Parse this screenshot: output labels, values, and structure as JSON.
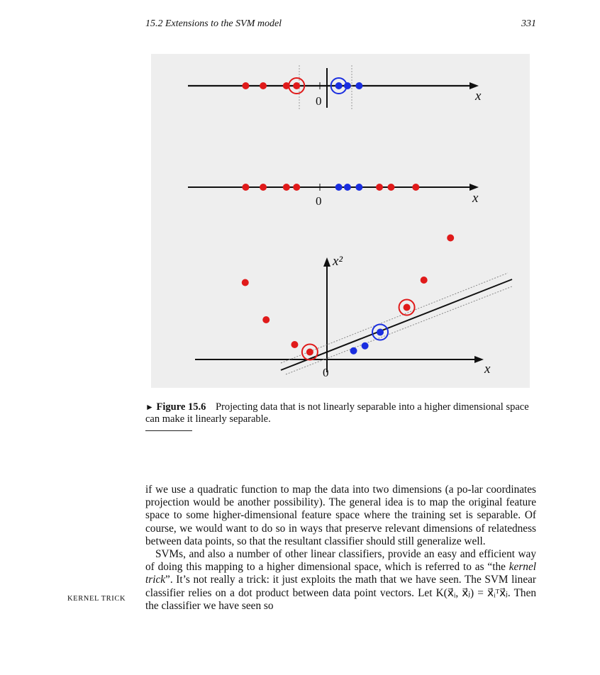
{
  "running_head": {
    "section": "15.2   Extensions to the SVM model",
    "page_number": "331"
  },
  "figure": {
    "panel1": {
      "axis_label": "x",
      "zero_label": "0",
      "red_points": [
        -5.1,
        -3.9,
        -2.3,
        -1.6
      ],
      "blue_points": [
        1.3,
        1.9,
        2.7
      ],
      "support_vectors": [
        {
          "x": -1.6,
          "class": "red"
        },
        {
          "x": 1.3,
          "class": "blue"
        }
      ],
      "colors": {
        "red": "#e01a1a",
        "blue": "#1a2ee0"
      }
    },
    "panel2": {
      "axis_label": "x",
      "zero_label": "0",
      "red_points": [
        -5.1,
        -3.9,
        -2.3,
        -1.6,
        4.1,
        4.9,
        6.6
      ],
      "blue_points": [
        1.3,
        1.9,
        2.7
      ]
    },
    "panel3": {
      "x_axis_label": "x",
      "y_axis_label": "x²",
      "zero_label": "0",
      "red_points": [
        [
          -4.3,
          3.1
        ],
        [
          -3.2,
          1.6
        ],
        [
          -1.7,
          0.6
        ],
        [
          -0.9,
          0.3
        ],
        [
          4.2,
          2.1
        ],
        [
          5.1,
          3.2
        ],
        [
          6.5,
          4.9
        ]
      ],
      "blue_points": [
        [
          1.4,
          0.35
        ],
        [
          2.0,
          0.55
        ],
        [
          2.8,
          1.1
        ]
      ],
      "support_vectors": [
        {
          "x": -0.9,
          "y": 0.3,
          "class": "red"
        },
        {
          "x": 2.8,
          "y": 1.1,
          "class": "blue"
        },
        {
          "x": 4.2,
          "y": 2.1,
          "class": "red"
        }
      ]
    }
  },
  "caption": {
    "marker": "►",
    "label": "Figure 15.6",
    "text": "Projecting data that is not linearly separable into a higher dimensional space can make it linearly separable."
  },
  "body": {
    "paragraph1": "if we use a quadratic function to map the data into two dimensions (a po-lar coordinates projection would be another possibility). The general idea is to map the original feature space to some higher-dimensional feature space where the training set is separable. Of course, we would want to do so in ways that preserve relevant dimensions of relatedness between data points, so that the resultant classifier should still generalize well.",
    "p2_part1": "SVMs, and also a number of other linear classifiers, provide an easy and efficient way of doing this mapping to a higher dimensional space, which is referred to as “the ",
    "p2_italic": "kernel trick",
    "p2_part2": "”. It’s not really a trick: it just exploits the math that we have seen. The SVM linear classifier relies on a dot product between data point vectors. Let ",
    "p2_formula": "K(x⃗ᵢ, x⃗ⱼ) = x⃗ᵢᵀx⃗ⱼ",
    "p2_part3": ". Then the classifier we have seen so"
  },
  "margin_note": "KERNEL TRICK"
}
